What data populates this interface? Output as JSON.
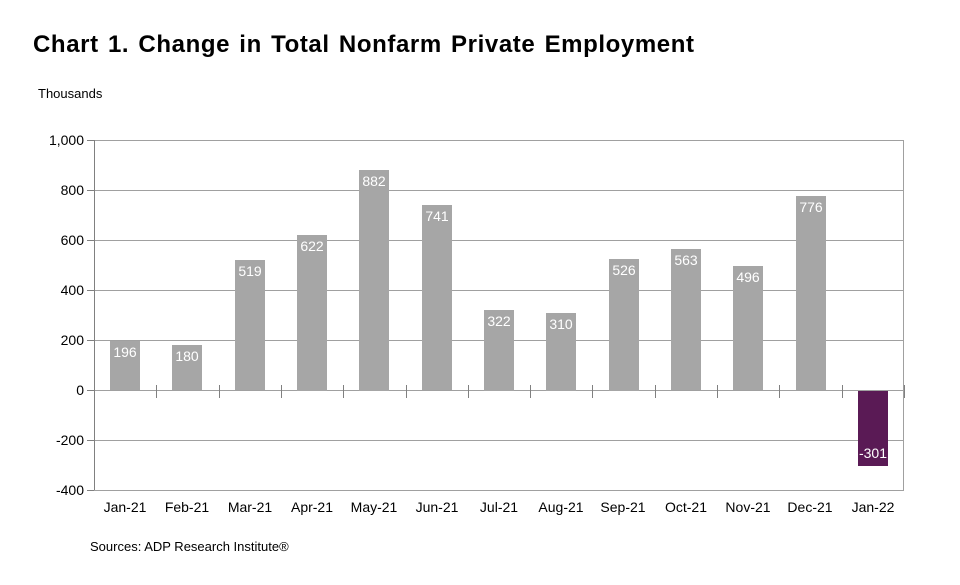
{
  "page": {
    "title": "Chart 1. Change in Total Nonfarm Private Employment",
    "y_axis_unit_label": "Thousands",
    "source": "Sources: ADP Research Institute®"
  },
  "chart_data": {
    "type": "bar",
    "title": "Chart 1. Change in Total Nonfarm Private Employment",
    "ylabel": "Thousands",
    "xlabel": "",
    "categories": [
      "Jan-21",
      "Feb-21",
      "Mar-21",
      "Apr-21",
      "May-21",
      "Jun-21",
      "Jul-21",
      "Aug-21",
      "Sep-21",
      "Oct-21",
      "Nov-21",
      "Dec-21",
      "Jan-22"
    ],
    "values": [
      196,
      180,
      519,
      622,
      882,
      741,
      322,
      310,
      526,
      563,
      496,
      776,
      -301
    ],
    "data_labels": [
      "196",
      "180",
      "519",
      "622",
      "882",
      "741",
      "322",
      "310",
      "526",
      "563",
      "496",
      "776",
      "-301"
    ],
    "ylim": [
      -400,
      1000
    ],
    "y_ticks": [
      1000,
      800,
      600,
      400,
      200,
      0,
      -200,
      -400
    ],
    "y_tick_labels": [
      "1,000",
      "800",
      "600",
      "400",
      "200",
      "0",
      "-200",
      "-400"
    ],
    "grid": true,
    "legend": false,
    "source_note": "Sources: ADP Research Institute®",
    "colors": {
      "bar_positive": "#a6a6a6",
      "bar_negative": "#5a1a55",
      "data_label": "#ffffff",
      "gridline": "#a0a0a0",
      "axis": "#808080",
      "text": "#000000",
      "background": "#ffffff"
    }
  }
}
